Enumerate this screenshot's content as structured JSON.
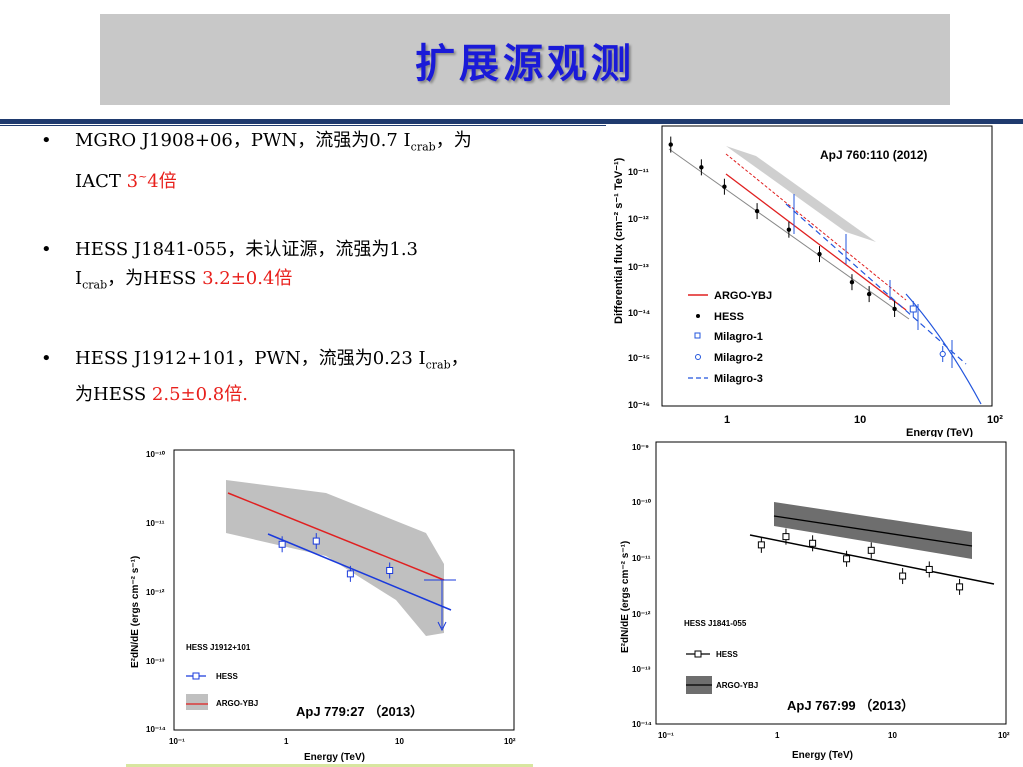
{
  "slide_title": "扩展源观测",
  "bullets": [
    {
      "l1_a": "MGRO J1908+06，PWN，流强为0.7 I",
      "l1_sub": "crab",
      "l1_b": "，为",
      "l2_a": "IACT ",
      "l2_red": "3",
      "l2_sup": "~",
      "l2_red2": "4倍"
    },
    {
      "l1": "HESS J1841-055，未认证源，流强为1.3",
      "l2_a": "I",
      "l2_sub": "crab",
      "l2_b": "，为HESS ",
      "l2_red": "3.2±0.4倍"
    },
    {
      "l1_a": "HESS J1912+101，PWN，流强为0.23 I",
      "l1_sub": "crab",
      "l1_b": "，",
      "l2_a": "为HESS ",
      "l2_red": "2.5±0.8倍."
    }
  ],
  "figures": {
    "fig1": {
      "citation": "ApJ 760:110 (2012)",
      "ylabel": "Differential flux (cm⁻² s⁻¹ TeV⁻¹)",
      "xlabel": "Energy (TeV)",
      "x_ticks": [
        "1",
        "10",
        "10²"
      ],
      "y_ticks": [
        "10⁻¹¹",
        "10⁻¹²",
        "10⁻¹³",
        "10⁻¹⁴",
        "10⁻¹⁵",
        "10⁻¹⁶"
      ],
      "legend": [
        "ARGO-YBJ",
        "HESS",
        "Milagro-1",
        "Milagro-2",
        "Milagro-3"
      ]
    },
    "fig2": {
      "citation": "ApJ 779:27 （2013）",
      "ylabel": "E²dN/dE (ergs cm⁻² s⁻¹)",
      "xlabel": "Energy (TeV)",
      "x_ticks": [
        "10⁻¹",
        "1",
        "10",
        "10²"
      ],
      "y_ticks": [
        "10⁻¹⁰",
        "10⁻¹¹",
        "10⁻¹²",
        "10⁻¹³",
        "10⁻¹⁴"
      ],
      "source": "HESS J1912+101",
      "legend": [
        "HESS",
        "ARGO-YBJ"
      ]
    },
    "fig3": {
      "citation": "ApJ 767:99 （2013）",
      "ylabel": "E²dN/dE (ergs cm⁻² s⁻¹)",
      "xlabel": "Energy (TeV)",
      "x_ticks": [
        "10⁻¹",
        "1",
        "10",
        "10²"
      ],
      "y_ticks": [
        "10⁻⁹",
        "10⁻¹⁰",
        "10⁻¹¹",
        "10⁻¹²",
        "10⁻¹³",
        "10⁻¹⁴"
      ],
      "source": "HESS J1841-055",
      "legend": [
        "HESS",
        "ARGO-YBJ"
      ]
    }
  },
  "colors": {
    "title": "#1a1ad8",
    "highlight": "#e8201c",
    "argo": "#e02020",
    "hess_fit": "#1a3adc",
    "milagro": "#2255dd"
  },
  "chart_data": [
    {
      "type": "scatter",
      "title": "",
      "xlabel": "Energy (TeV)",
      "ylabel": "Differential flux (cm⁻² s⁻¹ TeV⁻¹)",
      "x_scale": "log",
      "y_scale": "log",
      "xlim": [
        0.3,
        100
      ],
      "ylim": [
        1e-16,
        1e-10
      ],
      "series": [
        {
          "name": "HESS",
          "x": [
            0.35,
            0.6,
            0.9,
            1.6,
            2.8,
            4.8,
            8.5,
            11.5,
            18
          ],
          "y": [
            4e-11,
            1.3e-11,
            5e-12,
            1.5e-12,
            6e-13,
            1.8e-13,
            4.5e-14,
            2.5e-14,
            1.2e-14
          ]
        },
        {
          "name": "Milagro-1",
          "x": [
            25
          ],
          "y": [
            1.2e-14
          ]
        },
        {
          "name": "Milagro-2",
          "x": [
            42
          ],
          "y": [
            1.3e-15
          ]
        }
      ],
      "legend": [
        "ARGO-YBJ",
        "HESS",
        "Milagro-1",
        "Milagro-2",
        "Milagro-3"
      ]
    },
    {
      "type": "scatter",
      "title": "",
      "xlabel": "Energy (TeV)",
      "ylabel": "E²dN/dE (ergs cm⁻² s⁻¹)",
      "x_scale": "log",
      "y_scale": "log",
      "xlim": [
        0.1,
        100
      ],
      "ylim": [
        1e-14,
        1e-10
      ],
      "series": [
        {
          "name": "HESS",
          "x": [
            0.9,
            1.8,
            3.6,
            8
          ],
          "y": [
            4.5e-12,
            5e-12,
            1.7e-12,
            1.9e-12
          ]
        }
      ],
      "legend": [
        "HESS",
        "ARGO-YBJ"
      ]
    },
    {
      "type": "scatter",
      "title": "",
      "xlabel": "Energy (TeV)",
      "ylabel": "E²dN/dE (ergs cm⁻² s⁻¹)",
      "x_scale": "log",
      "y_scale": "log",
      "xlim": [
        0.1,
        100
      ],
      "ylim": [
        1e-14,
        1e-09
      ],
      "series": [
        {
          "name": "HESS",
          "x": [
            0.8,
            1.3,
            2.2,
            4.3,
            7,
            13,
            22,
            40
          ],
          "y": [
            1.5e-11,
            2.1e-11,
            1.6e-11,
            8.5e-12,
            1.2e-11,
            4.2e-12,
            5.5e-12,
            2.7e-12
          ]
        }
      ],
      "legend": [
        "HESS",
        "ARGO-YBJ"
      ]
    }
  ]
}
